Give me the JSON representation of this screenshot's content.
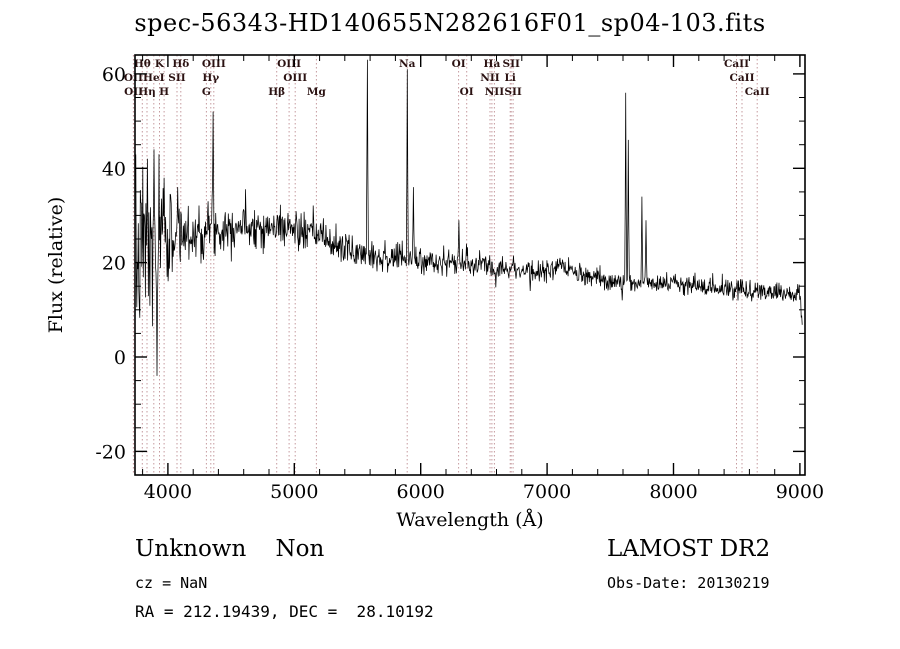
{
  "title": "spec-56343-HD140655N282616F01_sp04-103.fits",
  "colors": {
    "background": "#ffffff",
    "spectrum": "#000000",
    "axis": "#000000",
    "marker_line": "#c59a9e",
    "marker_label": "#2b1212"
  },
  "footer": {
    "class_label": "Unknown    Non",
    "cz": "cz = NaN",
    "radec": "RA = 212.19439, DEC =  28.10192",
    "survey": "LAMOST DR2",
    "obs_date": "Obs-Date: 20130219"
  },
  "chart_data": {
    "type": "line",
    "title": "spec-56343-HD140655N282616F01_sp04-103.fits",
    "xlabel": "Wavelength (Å)",
    "ylabel": "Flux (relative)",
    "xlim": [
      3740,
      9040
    ],
    "ylim": [
      -25,
      64
    ],
    "xticks": [
      4000,
      5000,
      6000,
      7000,
      8000,
      9000
    ],
    "yticks": [
      -20,
      0,
      20,
      40,
      60
    ],
    "x_minor_step": 200,
    "y_minor_step": 5,
    "grid": false,
    "legend": "none",
    "continuum": [
      [
        3745,
        18
      ],
      [
        3800,
        24
      ],
      [
        3850,
        20
      ],
      [
        3900,
        23
      ],
      [
        3950,
        24
      ],
      [
        4000,
        25
      ],
      [
        4100,
        26
      ],
      [
        4200,
        26
      ],
      [
        4300,
        27
      ],
      [
        4400,
        27
      ],
      [
        4500,
        28
      ],
      [
        4600,
        28
      ],
      [
        4700,
        28
      ],
      [
        4800,
        27
      ],
      [
        4900,
        28
      ],
      [
        5000,
        27
      ],
      [
        5100,
        26
      ],
      [
        5200,
        26
      ],
      [
        5300,
        24
      ],
      [
        5400,
        23
      ],
      [
        5500,
        22
      ],
      [
        5600,
        22
      ],
      [
        5700,
        21
      ],
      [
        5800,
        21
      ],
      [
        5900,
        21
      ],
      [
        6000,
        20.5
      ],
      [
        6100,
        20
      ],
      [
        6200,
        20
      ],
      [
        6300,
        20
      ],
      [
        6400,
        19.5
      ],
      [
        6500,
        19.5
      ],
      [
        6600,
        19
      ],
      [
        6700,
        19
      ],
      [
        6800,
        18.5
      ],
      [
        6900,
        18
      ],
      [
        7000,
        18.5
      ],
      [
        7100,
        19
      ],
      [
        7200,
        18
      ],
      [
        7300,
        17
      ],
      [
        7400,
        16.5
      ],
      [
        7500,
        16
      ],
      [
        7600,
        16
      ],
      [
        7700,
        15.5
      ],
      [
        7800,
        16
      ],
      [
        7900,
        16
      ],
      [
        8000,
        15.5
      ],
      [
        8100,
        15
      ],
      [
        8200,
        15
      ],
      [
        8300,
        15
      ],
      [
        8400,
        14.5
      ],
      [
        8500,
        14.5
      ],
      [
        8600,
        14
      ],
      [
        8700,
        14
      ],
      [
        8800,
        14
      ],
      [
        8900,
        13.5
      ],
      [
        8960,
        13
      ],
      [
        9000,
        14
      ],
      [
        9020,
        6
      ]
    ],
    "noise_sigma": [
      [
        3745,
        9
      ],
      [
        3850,
        8
      ],
      [
        3950,
        6
      ],
      [
        4050,
        4.5
      ],
      [
        4200,
        3.2
      ],
      [
        4400,
        2.6
      ],
      [
        4700,
        2.2
      ],
      [
        5000,
        2.0
      ],
      [
        5300,
        1.8
      ],
      [
        5600,
        1.6
      ],
      [
        6000,
        1.4
      ],
      [
        6500,
        1.2
      ],
      [
        7000,
        1.1
      ],
      [
        7500,
        1.0
      ],
      [
        8000,
        1.0
      ],
      [
        8600,
        1.0
      ],
      [
        9020,
        1.2
      ]
    ],
    "features": [
      {
        "wavelength": 3836,
        "flux": 42
      },
      {
        "wavelength": 3890,
        "flux": 44
      },
      {
        "wavelength": 3912,
        "flux": -4
      },
      {
        "wavelength": 3971,
        "flux": 38
      },
      {
        "wavelength": 4078,
        "flux": 36
      },
      {
        "wavelength": 4358,
        "flux": 52
      },
      {
        "wavelength": 5577,
        "flux": 63
      },
      {
        "wavelength": 5893,
        "flux": 61
      },
      {
        "wavelength": 5940,
        "flux": 36
      },
      {
        "wavelength": 6300,
        "flux": 29
      },
      {
        "wavelength": 6363,
        "flux": 24
      },
      {
        "wavelength": 6867,
        "flux": 14
      },
      {
        "wavelength": 7594,
        "flux": 12
      },
      {
        "wavelength": 7621,
        "flux": 56
      },
      {
        "wavelength": 7641,
        "flux": 46
      },
      {
        "wavelength": 7750,
        "flux": 34
      },
      {
        "wavelength": 7780,
        "flux": 29
      }
    ],
    "line_markers": [
      {
        "label": "Hθ",
        "wavelength": 3798,
        "row": 0
      },
      {
        "label": "K",
        "wavelength": 3934,
        "row": 0
      },
      {
        "label": "Hδ",
        "wavelength": 4102,
        "row": 0
      },
      {
        "label": "OIII",
        "wavelength": 4363,
        "row": 0
      },
      {
        "label": "OIII",
        "wavelength": 4959,
        "row": 0
      },
      {
        "label": "Na",
        "wavelength": 5893,
        "row": 0
      },
      {
        "label": "OI",
        "wavelength": 6300,
        "row": 0
      },
      {
        "label": "Ha",
        "wavelength": 6563,
        "row": 0
      },
      {
        "label": "SII",
        "wavelength": 6716,
        "row": 0
      },
      {
        "label": "CaII",
        "wavelength": 8498,
        "row": 0
      },
      {
        "label": "OII",
        "wavelength": 3727,
        "row": 1
      },
      {
        "label": "HeI",
        "wavelength": 3889,
        "row": 1
      },
      {
        "label": "SII",
        "wavelength": 4072,
        "row": 1
      },
      {
        "label": "Hγ",
        "wavelength": 4340,
        "row": 1
      },
      {
        "label": "OIII",
        "wavelength": 5007,
        "row": 1
      },
      {
        "label": "NII",
        "wavelength": 6548,
        "row": 1
      },
      {
        "label": "Li",
        "wavelength": 6708,
        "row": 1
      },
      {
        "label": "CaII",
        "wavelength": 8542,
        "row": 1
      },
      {
        "label": "OII",
        "wavelength": 3729,
        "row": 2
      },
      {
        "label": "Hη",
        "wavelength": 3835,
        "row": 2
      },
      {
        "label": "H",
        "wavelength": 3970,
        "row": 2
      },
      {
        "label": "G",
        "wavelength": 4305,
        "row": 2
      },
      {
        "label": "Hβ",
        "wavelength": 4861,
        "row": 2
      },
      {
        "label": "Mg",
        "wavelength": 5175,
        "row": 2
      },
      {
        "label": "OI",
        "wavelength": 6364,
        "row": 2
      },
      {
        "label": "NII",
        "wavelength": 6583,
        "row": 2
      },
      {
        "label": "SII",
        "wavelength": 6731,
        "row": 2
      },
      {
        "label": "CaII",
        "wavelength": 8662,
        "row": 2
      }
    ]
  }
}
